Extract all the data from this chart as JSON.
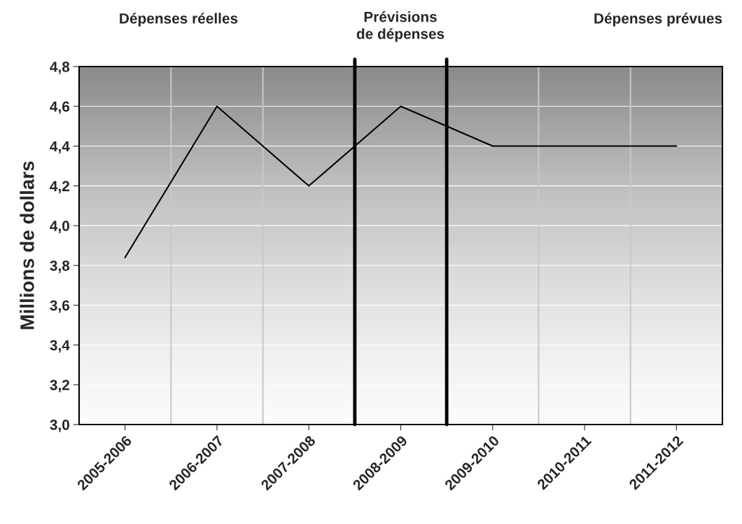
{
  "chart_data": {
    "type": "line",
    "ylabel": "Millions de dollars",
    "categories": [
      "2005-2006",
      "2006-2007",
      "2007-2008",
      "2008-2009",
      "2009-2010",
      "2010-2011",
      "2011-2012"
    ],
    "series": [
      {
        "color": "#000000",
        "values": [
          3.84,
          4.6,
          4.2,
          4.6,
          4.4,
          4.4,
          4.4
        ]
      }
    ],
    "ylim": [
      3.0,
      4.8
    ],
    "yticks": [
      {
        "value": 3.0,
        "label": "3,0"
      },
      {
        "value": 3.2,
        "label": "3,2"
      },
      {
        "value": 3.4,
        "label": "3,4"
      },
      {
        "value": 3.6,
        "label": "3,6"
      },
      {
        "value": 3.8,
        "label": "3,8"
      },
      {
        "value": 4.0,
        "label": "4,0"
      },
      {
        "value": 4.2,
        "label": "4,2"
      },
      {
        "value": 4.4,
        "label": "4,4"
      },
      {
        "value": 4.6,
        "label": "4,6"
      },
      {
        "value": 4.8,
        "label": "4,8"
      }
    ],
    "annotations": [
      "Dépenses réelles",
      "Prévisions\nde dépenses",
      "Dépenses prévues"
    ],
    "grid": true,
    "marker": "none",
    "line_style": "solid",
    "legend": false
  }
}
